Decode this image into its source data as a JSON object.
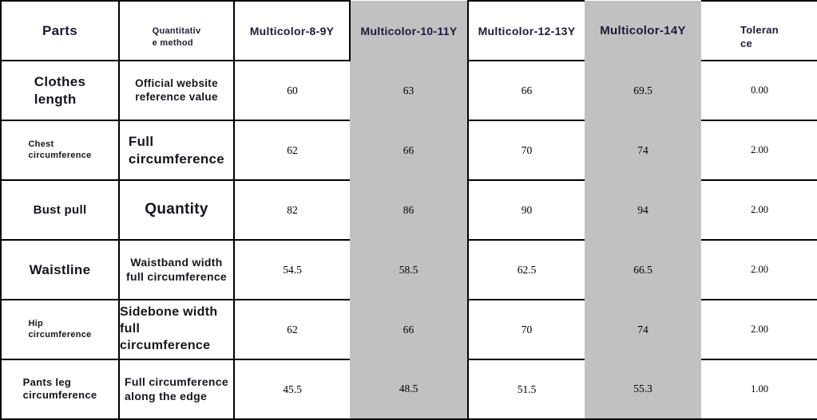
{
  "table": {
    "columns": [
      {
        "label": "Parts"
      },
      {
        "label": "Quantitativ\ne method"
      },
      {
        "label": "Multicolor-8-9Y"
      },
      {
        "label": "Multicolor-10-11Y",
        "highlight": true
      },
      {
        "label": "Multicolor-12-13Y"
      },
      {
        "label": "Multicolor-14Y",
        "highlight": true
      },
      {
        "label": "Toleran\nce"
      }
    ],
    "highlight_color": "#c1c1c1",
    "rows": [
      {
        "part": "Clothes\nlength",
        "method": "Official website\nreference value",
        "values": [
          "60",
          "63",
          "66",
          "69.5"
        ],
        "tolerance": "0.00"
      },
      {
        "part": "Chest\ncircumference",
        "method": "Full\ncircumference",
        "values": [
          "62",
          "66",
          "70",
          "74"
        ],
        "tolerance": "2.00"
      },
      {
        "part": "Bust pull",
        "method": "Quantity",
        "values": [
          "82",
          "86",
          "90",
          "94"
        ],
        "tolerance": "2.00"
      },
      {
        "part": "Waistline",
        "method": "Waistband width\nfull circumference",
        "values": [
          "54.5",
          "58.5",
          "62.5",
          "66.5"
        ],
        "tolerance": "2.00"
      },
      {
        "part": "Hip\ncircumference",
        "method": "Sidebone width\nfull circumference",
        "values": [
          "62",
          "66",
          "70",
          "74"
        ],
        "tolerance": "2.00"
      },
      {
        "part": "Pants leg\ncircumference",
        "method": "Full circumference\nalong the edge",
        "values": [
          "45.5",
          "48.5",
          "51.5",
          "55.3"
        ],
        "tolerance": "1.00"
      }
    ]
  }
}
